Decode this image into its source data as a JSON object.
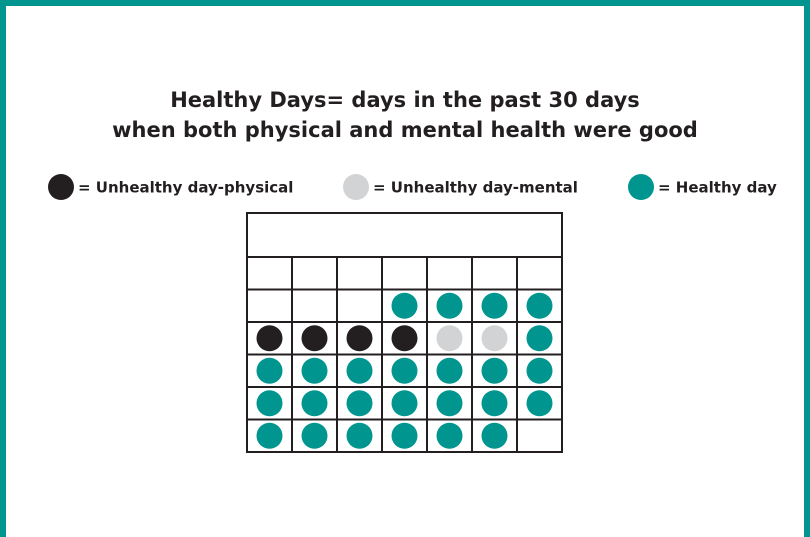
{
  "title": {
    "line1": "Healthy Days= days in the past 30 days",
    "line2": "when both physical and mental health were good"
  },
  "legend": [
    {
      "label": "= Unhealthy day-physical",
      "color": "#231f20"
    },
    {
      "label": "= Unhealthy day-mental",
      "color": "#d1d3d4"
    },
    {
      "label": "= Healthy day",
      "color": "#00968f"
    }
  ],
  "calendar": {
    "cells": [
      [
        null,
        null,
        null,
        null,
        null,
        null,
        null
      ],
      [
        null,
        null,
        null,
        2,
        2,
        2,
        2
      ],
      [
        0,
        0,
        0,
        0,
        1,
        1,
        2
      ],
      [
        2,
        2,
        2,
        2,
        2,
        2,
        2
      ],
      [
        2,
        2,
        2,
        2,
        2,
        2,
        2
      ],
      [
        2,
        2,
        2,
        2,
        2,
        2,
        null
      ]
    ]
  }
}
